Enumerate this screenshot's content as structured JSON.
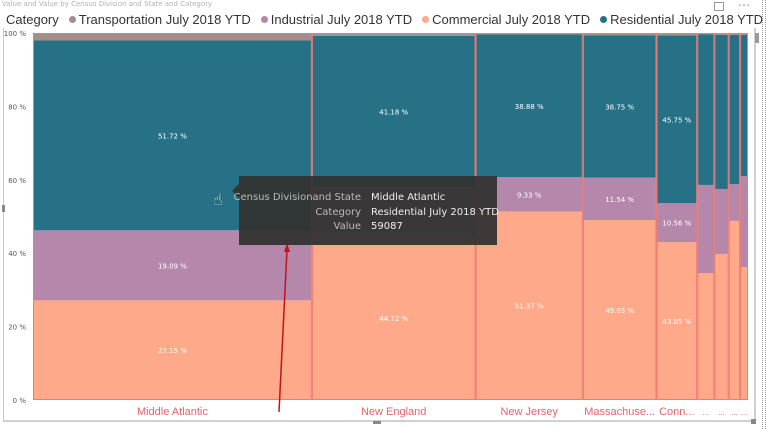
{
  "visual": {
    "title": "Value and Value by Census Division and State and Category",
    "focus_icon": "focus-mode-icon",
    "more_icon": "more-options-icon"
  },
  "chart_data": {
    "type": "mekko (100% stacked bar with variable width)",
    "title": "Value and Value by Census Division and State and Category",
    "legend_title": "Category",
    "legend_position": "top-left",
    "y_ticks": [
      "0 %",
      "20 %",
      "40 %",
      "60 %",
      "80 %",
      "100 %"
    ],
    "ylim": [
      0,
      100
    ],
    "series": [
      {
        "name": "Transportation July 2018 YTD",
        "color": "#a58d8d"
      },
      {
        "name": "Industrial July 2018 YTD",
        "color": "#b587ab"
      },
      {
        "name": "Commercial July 2018 YTD",
        "color": "#fda98a"
      },
      {
        "name": "Residential July 2018 YTD",
        "color": "#277187"
      }
    ],
    "stack_order_bottom_to_top": [
      "Commercial July 2018 YTD",
      "Industrial July 2018 YTD",
      "Residential July 2018 YTD",
      "Transportation July 2018 YTD"
    ],
    "columns": [
      {
        "label": "Middle Atlantic",
        "share_of_total": 39.0,
        "commercial": 27.15,
        "industrial": 19.09,
        "residential": 51.72,
        "transportation": 2.04,
        "labels": [
          "27.15 %",
          "19.09 %",
          "51.72 %"
        ]
      },
      {
        "label": "New England",
        "share_of_total": 22.9,
        "commercial": 44.72,
        "industrial": 13.3,
        "residential": 41.18,
        "transportation": 0.8,
        "labels": [
          "44.72 %",
          "",
          "41.18 %"
        ]
      },
      {
        "label": "New Jersey",
        "share_of_total": 15.0,
        "commercial": 51.37,
        "industrial": 9.33,
        "residential": 38.88,
        "transportation": 0.42,
        "labels": [
          "51.37 %",
          "9.33 %",
          "38.88 %"
        ]
      },
      {
        "label": "Massachuse...",
        "share_of_total": 10.3,
        "commercial": 49.03,
        "industrial": 11.54,
        "residential": 38.75,
        "transportation": 0.68,
        "labels": [
          "49.03 %",
          "11.54 %",
          "38.75 %"
        ]
      },
      {
        "label": "Conn...",
        "share_of_total": 5.7,
        "commercial": 43.05,
        "industrial": 10.56,
        "residential": 45.75,
        "transportation": 0.64,
        "labels": [
          "43.05 %",
          "10.56 %",
          "45.75 %"
        ]
      },
      {
        "label": "...",
        "share_of_total": 2.4,
        "commercial": 34.6,
        "industrial": 24.0,
        "residential": 41.0,
        "transportation": 0.4,
        "labels": [
          "",
          "",
          ""
        ]
      },
      {
        "label": "...",
        "share_of_total": 2.0,
        "commercial": 39.8,
        "industrial": 17.7,
        "residential": 42.0,
        "transportation": 0.5,
        "labels": [
          "",
          "",
          ""
        ]
      },
      {
        "label": "...",
        "share_of_total": 1.6,
        "commercial": 48.8,
        "industrial": 10.0,
        "residential": 40.7,
        "transportation": 0.5,
        "labels": [
          "",
          "",
          ""
        ]
      },
      {
        "label": "...",
        "share_of_total": 1.1,
        "commercial": 36.2,
        "industrial": 24.8,
        "residential": 38.5,
        "transportation": 0.5,
        "labels": [
          "",
          "",
          ""
        ]
      }
    ],
    "column_border_color": "#f07a74",
    "axis_label_color": "#e8636a",
    "grid": false
  },
  "tooltip": {
    "rows": [
      {
        "key": "Census Divisionand State",
        "value": "Middle Atlantic"
      },
      {
        "key": "Category",
        "value": "Residential July 2018 YTD"
      },
      {
        "key": "Value",
        "value": "59087"
      }
    ]
  },
  "annotation": {
    "arrow_color": "#c0141c"
  },
  "cursor_icon": "hand-pointer-icon"
}
